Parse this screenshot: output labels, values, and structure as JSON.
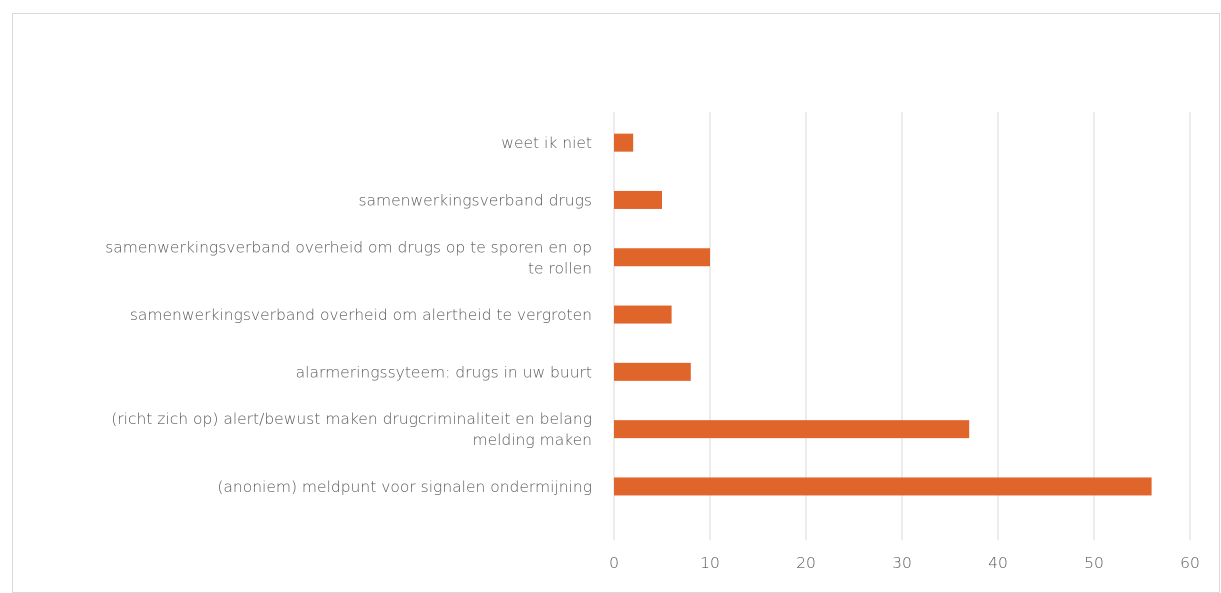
{
  "chart_data": {
    "type": "bar",
    "orientation": "horizontal",
    "categories": [
      "weet ik niet",
      "samenwerkingsverband drugs",
      "samenwerkingsverband overheid om drugs op te sporen en op te rollen",
      "samenwerkingsverband overheid om alertheid te vergroten",
      "alarmeringssyteem: drugs in uw buurt",
      "(richt zich op) alert/bewust maken drugcriminaliteit en belang melding maken",
      "(anoniem) meldpunt voor signalen ondermijning"
    ],
    "category_lines": [
      [
        "weet ik niet"
      ],
      [
        "samenwerkingsverband drugs"
      ],
      [
        "samenwerkingsverband overheid om drugs op te sporen en op",
        "te rollen"
      ],
      [
        "samenwerkingsverband overheid om alertheid te vergroten"
      ],
      [
        "alarmeringssyteem: drugs in uw buurt"
      ],
      [
        "(richt zich op) alert/bewust maken drugcriminaliteit en belang",
        "melding maken"
      ],
      [
        "(anoniem) meldpunt voor signalen ondermijning"
      ]
    ],
    "values": [
      2,
      5,
      10,
      6,
      8,
      37,
      56
    ],
    "xlim": [
      0,
      60
    ],
    "xticks": [
      0,
      10,
      20,
      30,
      40,
      50,
      60
    ],
    "tick_labels": [
      "0",
      "10",
      "20",
      "30",
      "40",
      "50",
      "60"
    ],
    "grid": true,
    "legend": "none",
    "title": "",
    "xlabel": "",
    "ylabel": "",
    "colors": {
      "bar": "#e0652a",
      "grid": "#d9d9d9",
      "text": "#595959"
    }
  }
}
